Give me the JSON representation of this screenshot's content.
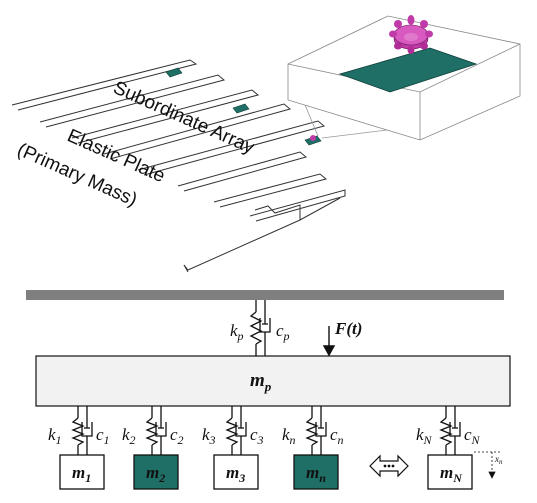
{
  "top": {
    "label_array": "Subordinate Array",
    "label_plate_line1": "Elastic Plate",
    "label_plate_line2": "(Primary Mass)"
  },
  "bottom": {
    "primary_spring": "k",
    "primary_spring_sub": "p",
    "primary_damper": "c",
    "primary_damper_sub": "p",
    "force": "F(t)",
    "primary_mass": "m",
    "primary_mass_sub": "p",
    "displacement": "x",
    "displacement_sub": "n",
    "subsystems": [
      {
        "k": "k",
        "k_sub": "1",
        "c": "c",
        "c_sub": "1",
        "m": "m",
        "m_sub": "1",
        "highlight": false
      },
      {
        "k": "k",
        "k_sub": "2",
        "c": "c",
        "c_sub": "2",
        "m": "m",
        "m_sub": "2",
        "highlight": true
      },
      {
        "k": "k",
        "k_sub": "3",
        "c": "c",
        "c_sub": "3",
        "m": "m",
        "m_sub": "3",
        "highlight": false
      },
      {
        "k": "k",
        "k_sub": "n",
        "c": "c",
        "c_sub": "n",
        "m": "m",
        "m_sub": "n",
        "highlight": true
      },
      {
        "k": "k",
        "k_sub": "N",
        "c": "c",
        "c_sub": "N",
        "m": "m",
        "m_sub": "N",
        "highlight": false
      }
    ]
  },
  "colors": {
    "teal": "#1f6f66",
    "ground": "#7f7f7f",
    "plate_fill": "#f2f2f2",
    "purple": "#c03aa8"
  }
}
